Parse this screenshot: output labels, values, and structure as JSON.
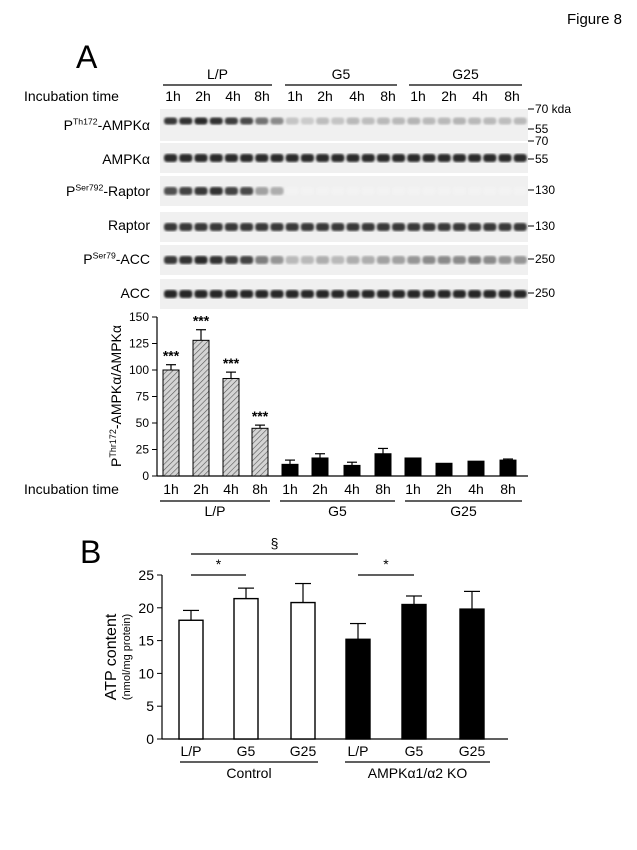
{
  "figure_label": "Figure 8",
  "panel_a": {
    "letter": "A",
    "groups": [
      "L/P",
      "G5",
      "G25"
    ],
    "incubation_label": "Incubation time",
    "times": [
      "1h",
      "2h",
      "4h",
      "8h"
    ],
    "blots": [
      {
        "label_pre": "P",
        "label_sup": "Th172",
        "label_main": "-AMPKα",
        "markers": [
          "70 kda",
          "55"
        ]
      },
      {
        "label_pre": "",
        "label_sup": "",
        "label_main": "AMPKα",
        "markers": [
          "70",
          "55"
        ]
      },
      {
        "label_pre": "P",
        "label_sup": "Ser792",
        "label_main": "-Raptor",
        "markers": [
          "130"
        ]
      },
      {
        "label_pre": "",
        "label_sup": "",
        "label_main": "Raptor",
        "markers": [
          "130"
        ]
      },
      {
        "label_pre": "P",
        "label_sup": "Ser79",
        "label_main": "-ACC",
        "markers": [
          "250"
        ]
      },
      {
        "label_pre": "",
        "label_sup": "",
        "label_main": "ACC",
        "markers": [
          "250"
        ]
      }
    ],
    "blot_intensity": [
      [
        0.85,
        0.88,
        0.9,
        0.88,
        0.82,
        0.78,
        0.6,
        0.5,
        0.25,
        0.22,
        0.28,
        0.25,
        0.3,
        0.28,
        0.3,
        0.3,
        0.32,
        0.3,
        0.3,
        0.32,
        0.3,
        0.3,
        0.28,
        0.3
      ],
      [
        0.9,
        0.9,
        0.9,
        0.9,
        0.9,
        0.9,
        0.9,
        0.9,
        0.9,
        0.9,
        0.9,
        0.9,
        0.9,
        0.9,
        0.9,
        0.9,
        0.9,
        0.9,
        0.9,
        0.9,
        0.9,
        0.9,
        0.9,
        0.9
      ],
      [
        0.75,
        0.8,
        0.85,
        0.88,
        0.8,
        0.78,
        0.4,
        0.35,
        0.05,
        0.05,
        0.05,
        0.05,
        0.05,
        0.05,
        0.05,
        0.05,
        0.05,
        0.05,
        0.05,
        0.05,
        0.05,
        0.05,
        0.05,
        0.05
      ],
      [
        0.85,
        0.85,
        0.85,
        0.85,
        0.85,
        0.85,
        0.85,
        0.85,
        0.85,
        0.85,
        0.85,
        0.85,
        0.85,
        0.85,
        0.85,
        0.85,
        0.85,
        0.85,
        0.85,
        0.85,
        0.85,
        0.85,
        0.85,
        0.85
      ],
      [
        0.85,
        0.88,
        0.9,
        0.88,
        0.82,
        0.8,
        0.55,
        0.45,
        0.3,
        0.3,
        0.35,
        0.3,
        0.35,
        0.35,
        0.4,
        0.4,
        0.45,
        0.5,
        0.5,
        0.5,
        0.55,
        0.5,
        0.45,
        0.45
      ],
      [
        0.92,
        0.92,
        0.92,
        0.92,
        0.92,
        0.92,
        0.92,
        0.92,
        0.92,
        0.92,
        0.92,
        0.92,
        0.92,
        0.92,
        0.92,
        0.92,
        0.92,
        0.92,
        0.92,
        0.92,
        0.92,
        0.92,
        0.92,
        0.92
      ]
    ],
    "colors": {
      "bar_fill_lp": "#c9c9c9",
      "bar_fill_dark": "#000000"
    }
  },
  "chart_data": [
    {
      "type": "bar",
      "ylabel_pre": "P",
      "ylabel_sup": "Thr172",
      "ylabel_main": "-AMPKα/AMPKα",
      "xlabel": "Incubation time",
      "ylim": [
        0,
        150
      ],
      "yticks": [
        0,
        25,
        50,
        75,
        100,
        125,
        150
      ],
      "groups": [
        "L/P",
        "G5",
        "G25"
      ],
      "categories": [
        "1h",
        "2h",
        "4h",
        "8h",
        "1h",
        "2h",
        "4h",
        "8h",
        "1h",
        "2h",
        "4h",
        "8h"
      ],
      "values": [
        100,
        128,
        92,
        45,
        11,
        17,
        10,
        21,
        17,
        12,
        14,
        15
      ],
      "errors": [
        5,
        10,
        6,
        3,
        4,
        4,
        3,
        5,
        0,
        0,
        0,
        1
      ],
      "significance": [
        "***",
        "***",
        "***",
        "***",
        "",
        "",
        "",
        "",
        "",
        "",
        "",
        ""
      ],
      "fill": [
        "hatched",
        "hatched",
        "hatched",
        "hatched",
        "black",
        "black",
        "black",
        "black",
        "black",
        "black",
        "black",
        "black"
      ]
    },
    {
      "type": "bar",
      "panel": "B",
      "ylabel": "ATP content",
      "ylabel_unit": "(nmol/mg protein)",
      "ylim": [
        0,
        25
      ],
      "yticks": [
        0,
        5,
        10,
        15,
        20,
        25
      ],
      "groups": [
        "Control",
        "AMPKα1/α2 KO"
      ],
      "categories": [
        "L/P",
        "G5",
        "G25",
        "L/P",
        "G5",
        "G25"
      ],
      "values": [
        18.1,
        21.4,
        20.8,
        15.2,
        20.5,
        19.8
      ],
      "errors": [
        1.5,
        1.6,
        2.9,
        2.4,
        1.3,
        2.7
      ],
      "fill": [
        "white",
        "white",
        "white",
        "black",
        "black",
        "black"
      ],
      "brackets": [
        {
          "from": 0,
          "to": 3,
          "label": "§"
        },
        {
          "from": 0,
          "to": 1,
          "label": "*"
        },
        {
          "from": 3,
          "to": 4,
          "label": "*"
        }
      ]
    }
  ]
}
